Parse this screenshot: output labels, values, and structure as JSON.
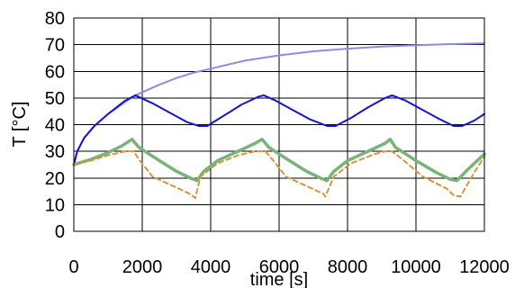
{
  "chart_data": {
    "type": "line",
    "title": "",
    "xlabel": "time [s]",
    "ylabel": "T [°C]",
    "xlim": [
      0,
      12000
    ],
    "ylim": [
      0,
      80
    ],
    "xticks": [
      0,
      2000,
      4000,
      6000,
      8000,
      10000,
      12000
    ],
    "yticks": [
      0,
      10,
      20,
      30,
      40,
      50,
      60,
      70,
      80
    ],
    "xtick_labels": [
      "0",
      "2000",
      "4000",
      "6000",
      "8000",
      "10000",
      "12000"
    ],
    "ytick_labels": [
      "0",
      "10",
      "20",
      "30",
      "40",
      "50",
      "60",
      "70",
      "80"
    ],
    "grid": true,
    "legend": "none",
    "series": [
      {
        "color": "#8c8ce6",
        "style": "solid",
        "x": [
          0,
          100,
          300,
          600,
          1000,
          1500,
          1800,
          2500,
          3000,
          3500,
          4000,
          5000,
          6000,
          7000,
          8000,
          9000,
          10000,
          11000,
          12000
        ],
        "y": [
          25,
          30,
          35,
          39.5,
          44,
          48.5,
          51,
          55,
          57.5,
          59.5,
          61,
          64,
          66,
          67.5,
          68.5,
          69.3,
          69.8,
          70.2,
          70.5
        ]
      },
      {
        "color": "#1414d2",
        "style": "solid",
        "x": [
          0,
          100,
          300,
          600,
          1000,
          1500,
          1800,
          2300,
          2800,
          3300,
          3650,
          3900,
          4400,
          4900,
          5400,
          5550,
          5900,
          6400,
          6900,
          7400,
          7650,
          8100,
          8600,
          9100,
          9300,
          9700,
          10200,
          10700,
          11100,
          11350,
          11700,
          12000
        ],
        "y": [
          25,
          30,
          35,
          39.5,
          44,
          49,
          51,
          48,
          44.5,
          41,
          39.5,
          39.5,
          43.5,
          47.5,
          50.5,
          51,
          49,
          45.5,
          42,
          39.5,
          39.5,
          42.5,
          46.5,
          50,
          51,
          49,
          45.5,
          42,
          39.5,
          39.5,
          41.5,
          44
        ]
      },
      {
        "color": "#78b478",
        "style": "solid",
        "x": [
          0,
          500,
          1000,
          1400,
          1700,
          1900,
          2500,
          3000,
          3400,
          3600,
          3800,
          4200,
          4800,
          5300,
          5500,
          5700,
          6300,
          6800,
          7200,
          7400,
          7600,
          8000,
          8600,
          9100,
          9250,
          9400,
          10000,
          10600,
          11000,
          11200,
          11500,
          12000
        ],
        "y": [
          25,
          27,
          29.5,
          32,
          34.5,
          31.5,
          26.5,
          22.5,
          20,
          19,
          22.5,
          26.5,
          30,
          33,
          34.5,
          31.5,
          26.5,
          22.5,
          20,
          19,
          22.5,
          26.5,
          30,
          33,
          34.5,
          31.5,
          26.5,
          22,
          19.5,
          19,
          23,
          29
        ]
      },
      {
        "color": "#d2963c",
        "style": "dashed",
        "x": [
          0,
          500,
          1000,
          1500,
          1750,
          1900,
          2300,
          2900,
          3400,
          3550,
          3700,
          4200,
          4800,
          5300,
          5600,
          5800,
          6200,
          6800,
          7300,
          7350,
          7600,
          8100,
          8800,
          9100,
          9300,
          9600,
          10200,
          10900,
          11100,
          11300,
          11700,
          12000
        ],
        "y": [
          25,
          26.5,
          28.5,
          30,
          30,
          27,
          20.5,
          17,
          14,
          12.5,
          20.5,
          25.5,
          28.5,
          30,
          30,
          27,
          20.5,
          17,
          14,
          13,
          20.5,
          25.5,
          29,
          30,
          30,
          27,
          20.5,
          16,
          13.5,
          13,
          22,
          28
        ]
      }
    ]
  }
}
